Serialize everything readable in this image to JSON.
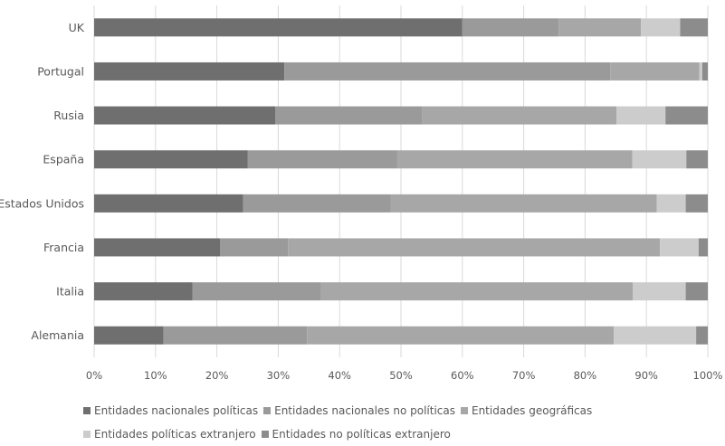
{
  "chart_data": {
    "type": "bar",
    "orientation": "horizontal",
    "stacked": "percent",
    "categories": [
      "UK",
      "Portugal",
      "Rusia",
      "España",
      "Estados Unidos",
      "Francia",
      "Italia",
      "Alemania"
    ],
    "series": [
      {
        "name": "Entidades nacionales políticas",
        "color": "#6f6f6f",
        "values": [
          60.0,
          31.0,
          29.5,
          25.0,
          24.3,
          20.5,
          16.0,
          11.3
        ]
      },
      {
        "name": "Entidades nacionales no políticas",
        "color": "#9a9a9a",
        "values": [
          15.7,
          53.1,
          24.0,
          24.4,
          24.0,
          11.1,
          21.0,
          23.4
        ]
      },
      {
        "name": "Entidades geográficas",
        "color": "#a7a7a7",
        "values": [
          13.4,
          14.5,
          31.6,
          38.3,
          43.4,
          60.6,
          50.8,
          50.0
        ]
      },
      {
        "name": "Entidades políticas extranjero",
        "color": "#cccccc",
        "values": [
          6.4,
          0.5,
          8.0,
          8.8,
          4.7,
          6.3,
          8.6,
          13.4
        ]
      },
      {
        "name": "Entidades no políticas extranjero",
        "color": "#8c8c8c",
        "values": [
          4.5,
          0.9,
          6.9,
          3.5,
          3.6,
          1.5,
          3.6,
          1.9
        ]
      }
    ],
    "x_ticks": [
      "0%",
      "10%",
      "20%",
      "30%",
      "40%",
      "50%",
      "60%",
      "70%",
      "80%",
      "90%",
      "100%"
    ],
    "xlim": [
      0,
      100
    ],
    "grid": "vertical",
    "legend_position": "bottom"
  }
}
